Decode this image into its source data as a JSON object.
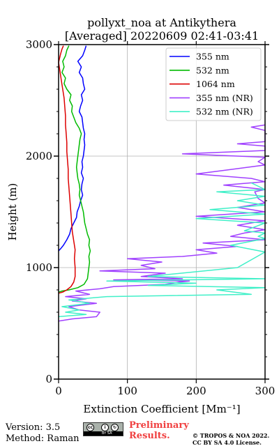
{
  "title_line1": "pollyxt_noa at Antikythera",
  "title_line2": "[Averaged] 20220609 02:41-03:41",
  "footer": {
    "version": "Version: 3.5",
    "method": "Method: Raman",
    "preliminary": "Preliminary Results.",
    "copyright_line1": "© TROPOS & NOA 2022.",
    "copyright_line2": "CC BY SA 4.0 License.",
    "cc_badge_text": "BY SA"
  },
  "colors": {
    "355": "#0000ff",
    "532": "#00bb00",
    "1064": "#dd0000",
    "355nr": "#a040ff",
    "532nr": "#40f0c8",
    "grid": "#b0b0b0",
    "preliminary": "#f04040"
  },
  "chart_data": {
    "type": "line",
    "xlabel": "Extinction Coefficient [Mm⁻¹]",
    "ylabel": "Height (m)",
    "xlim": [
      0,
      300
    ],
    "ylim": [
      0,
      3000
    ],
    "xticks": [
      0,
      100,
      200,
      300
    ],
    "yticks": [
      0,
      1000,
      2000,
      3000
    ],
    "grid": true,
    "legend_position": "top-right",
    "series": [
      {
        "name": "355 nm",
        "color": "#0000ff",
        "points": [
          [
            0,
            1150
          ],
          [
            3,
            1170
          ],
          [
            7,
            1200
          ],
          [
            12,
            1250
          ],
          [
            16,
            1300
          ],
          [
            18,
            1350
          ],
          [
            22,
            1400
          ],
          [
            26,
            1450
          ],
          [
            27,
            1500
          ],
          [
            30,
            1550
          ],
          [
            32,
            1600
          ],
          [
            35,
            1650
          ],
          [
            33,
            1700
          ],
          [
            34,
            1750
          ],
          [
            36,
            1800
          ],
          [
            33,
            1850
          ],
          [
            35,
            1900
          ],
          [
            34,
            1950
          ],
          [
            36,
            2000
          ],
          [
            37,
            2050
          ],
          [
            38,
            2100
          ],
          [
            37,
            2150
          ],
          [
            38,
            2200
          ],
          [
            36,
            2250
          ],
          [
            35,
            2300
          ],
          [
            34,
            2350
          ],
          [
            30,
            2400
          ],
          [
            32,
            2450
          ],
          [
            35,
            2500
          ],
          [
            33,
            2550
          ],
          [
            38,
            2600
          ],
          [
            36,
            2650
          ],
          [
            35,
            2700
          ],
          [
            30,
            2750
          ],
          [
            33,
            2800
          ],
          [
            28,
            2850
          ],
          [
            35,
            2900
          ],
          [
            38,
            2950
          ],
          [
            40,
            2990
          ]
        ]
      },
      {
        "name": "532 nm",
        "color": "#00bb00",
        "points": [
          [
            0,
            780
          ],
          [
            5,
            790
          ],
          [
            15,
            800
          ],
          [
            28,
            820
          ],
          [
            37,
            850
          ],
          [
            42,
            900
          ],
          [
            43,
            950
          ],
          [
            44,
            1000
          ],
          [
            45,
            1050
          ],
          [
            44,
            1100
          ],
          [
            46,
            1150
          ],
          [
            44,
            1200
          ],
          [
            45,
            1250
          ],
          [
            42,
            1300
          ],
          [
            40,
            1350
          ],
          [
            38,
            1400
          ],
          [
            37,
            1450
          ],
          [
            36,
            1500
          ],
          [
            34,
            1550
          ],
          [
            32,
            1600
          ],
          [
            30,
            1650
          ],
          [
            31,
            1700
          ],
          [
            30,
            1750
          ],
          [
            28,
            1800
          ],
          [
            27,
            1850
          ],
          [
            26,
            1900
          ],
          [
            27,
            1950
          ],
          [
            28,
            2000
          ],
          [
            29,
            2050
          ],
          [
            30,
            2100
          ],
          [
            31,
            2150
          ],
          [
            33,
            2200
          ],
          [
            30,
            2250
          ],
          [
            25,
            2300
          ],
          [
            22,
            2350
          ],
          [
            19,
            2400
          ],
          [
            20,
            2450
          ],
          [
            16,
            2500
          ],
          [
            18,
            2550
          ],
          [
            12,
            2600
          ],
          [
            8,
            2650
          ],
          [
            10,
            2700
          ],
          [
            5,
            2750
          ],
          [
            8,
            2800
          ],
          [
            6,
            2850
          ],
          [
            10,
            2900
          ],
          [
            12,
            2950
          ],
          [
            15,
            2990
          ]
        ]
      },
      {
        "name": "1064 nm",
        "color": "#dd0000",
        "points": [
          [
            0,
            770
          ],
          [
            6,
            780
          ],
          [
            12,
            800
          ],
          [
            18,
            830
          ],
          [
            22,
            870
          ],
          [
            24,
            920
          ],
          [
            24,
            1000
          ],
          [
            23,
            1080
          ],
          [
            24,
            1160
          ],
          [
            22,
            1240
          ],
          [
            20,
            1320
          ],
          [
            19,
            1400
          ],
          [
            18,
            1480
          ],
          [
            17,
            1560
          ],
          [
            16,
            1640
          ],
          [
            15,
            1720
          ],
          [
            14,
            1800
          ],
          [
            14,
            1880
          ],
          [
            13,
            1960
          ],
          [
            12,
            2040
          ],
          [
            12,
            2120
          ],
          [
            11,
            2200
          ],
          [
            10,
            2280
          ],
          [
            10,
            2360
          ],
          [
            9,
            2440
          ],
          [
            8,
            2520
          ],
          [
            6,
            2600
          ],
          [
            4,
            2680
          ],
          [
            2,
            2760
          ],
          [
            0,
            2840
          ],
          [
            3,
            2920
          ],
          [
            5,
            2960
          ],
          [
            7,
            2990
          ]
        ]
      },
      {
        "name": "355 nm (NR)",
        "color": "#a040ff",
        "points": [
          [
            0,
            520
          ],
          [
            20,
            540
          ],
          [
            55,
            560
          ],
          [
            60,
            600
          ],
          [
            30,
            620
          ],
          [
            15,
            650
          ],
          [
            55,
            680
          ],
          [
            20,
            700
          ],
          [
            40,
            720
          ],
          [
            10,
            740
          ],
          [
            45,
            760
          ],
          [
            25,
            790
          ],
          [
            60,
            810
          ],
          [
            80,
            830
          ],
          [
            155,
            850
          ],
          [
            175,
            870
          ],
          [
            190,
            880
          ],
          [
            80,
            890
          ],
          [
            180,
            900
          ],
          [
            120,
            920
          ],
          [
            155,
            950
          ],
          [
            60,
            970
          ],
          [
            140,
            990
          ],
          [
            120,
            1020
          ],
          [
            150,
            1050
          ],
          [
            100,
            1080
          ],
          [
            180,
            1100
          ],
          [
            230,
            1130
          ],
          [
            200,
            1160
          ],
          [
            260,
            1190
          ],
          [
            210,
            1220
          ],
          [
            300,
            1250
          ],
          [
            250,
            1280
          ],
          [
            270,
            1310
          ],
          [
            300,
            1340
          ],
          [
            260,
            1380
          ],
          [
            300,
            1420
          ],
          [
            200,
            1460
          ],
          [
            300,
            1500
          ],
          [
            260,
            1540
          ],
          [
            300,
            1580
          ],
          [
            290,
            1620
          ],
          [
            285,
            1680
          ],
          [
            300,
            1700
          ],
          [
            240,
            1740
          ],
          [
            300,
            1770
          ],
          [
            280,
            1800
          ],
          [
            200,
            1840
          ],
          [
            250,
            1880
          ],
          [
            300,
            1920
          ],
          [
            290,
            1950
          ],
          [
            300,
            1990
          ],
          [
            180,
            2020
          ],
          [
            300,
            2050
          ],
          [
            300,
            2090
          ],
          [
            260,
            2110
          ],
          [
            300,
            2130
          ],
          [
            300,
            2180
          ],
          [
            300,
            2230
          ],
          [
            280,
            2260
          ],
          [
            300,
            2280
          ]
        ]
      },
      {
        "name": "532 nm (NR)",
        "color": "#40f0c8",
        "points": [
          [
            0,
            560
          ],
          [
            40,
            580
          ],
          [
            10,
            600
          ],
          [
            30,
            620
          ],
          [
            5,
            650
          ],
          [
            45,
            680
          ],
          [
            15,
            710
          ],
          [
            70,
            740
          ],
          [
            280,
            760
          ],
          [
            230,
            800
          ],
          [
            300,
            820
          ],
          [
            130,
            840
          ],
          [
            200,
            860
          ],
          [
            70,
            880
          ],
          [
            300,
            900
          ],
          [
            130,
            920
          ],
          [
            260,
            1000
          ],
          [
            300,
            1140
          ],
          [
            250,
            1200
          ],
          [
            300,
            1260
          ],
          [
            290,
            1280
          ],
          [
            300,
            1310
          ],
          [
            270,
            1330
          ],
          [
            300,
            1400
          ],
          [
            200,
            1440
          ],
          [
            300,
            1480
          ],
          [
            220,
            1520
          ],
          [
            300,
            1560
          ],
          [
            260,
            1600
          ],
          [
            300,
            1640
          ],
          [
            230,
            1680
          ],
          [
            300,
            1700
          ],
          [
            280,
            1760
          ]
        ]
      }
    ]
  }
}
